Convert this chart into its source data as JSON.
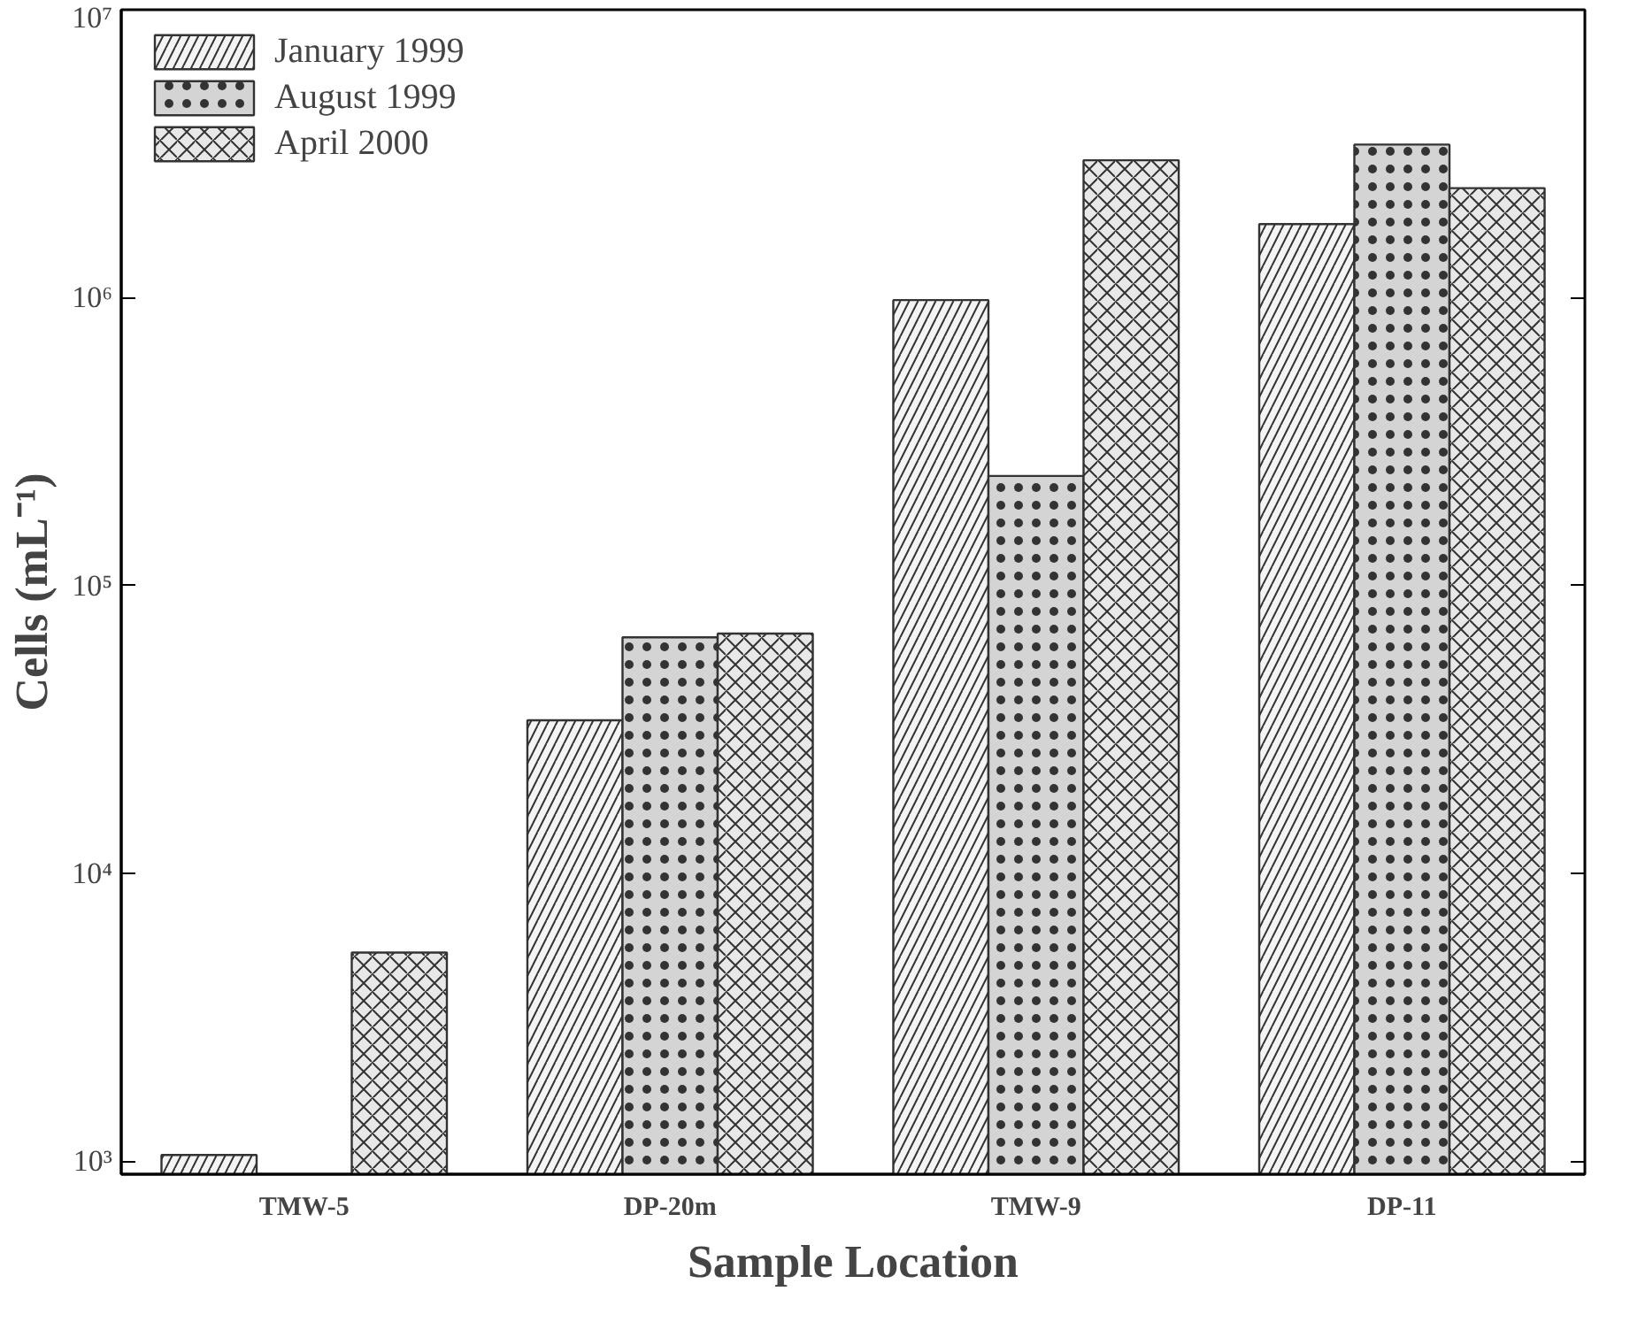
{
  "chart_data": {
    "type": "bar",
    "xlabel": "Sample Location",
    "ylabel": "Cells (mL⁻¹)",
    "categories": [
      "TMW-5",
      "DP-20m",
      "TMW-9",
      "DP-11"
    ],
    "series": [
      {
        "name": "January 1999",
        "color": "#f4f4f4",
        "values": [
          1050,
          34000,
          980000,
          1800000
        ]
      },
      {
        "name": "August 1999",
        "color": "#d4d4d4",
        "values": [
          null,
          66000,
          240000,
          3400000
        ]
      },
      {
        "name": "April 2000",
        "color": "#e8e8e8",
        "values": [
          5300,
          68000,
          3000000,
          2400000
        ]
      }
    ],
    "log": true,
    "ylim": [
      900,
      10000000
    ],
    "yticks": [
      {
        "value": 1000,
        "label": "10³"
      },
      {
        "value": 10000,
        "label": "10⁴"
      },
      {
        "value": 100000,
        "label": "10⁵"
      },
      {
        "value": 1000000,
        "label": "10⁶"
      },
      {
        "value": 10000000,
        "label": "10⁷"
      }
    ],
    "grid": false,
    "legend": "top left"
  }
}
